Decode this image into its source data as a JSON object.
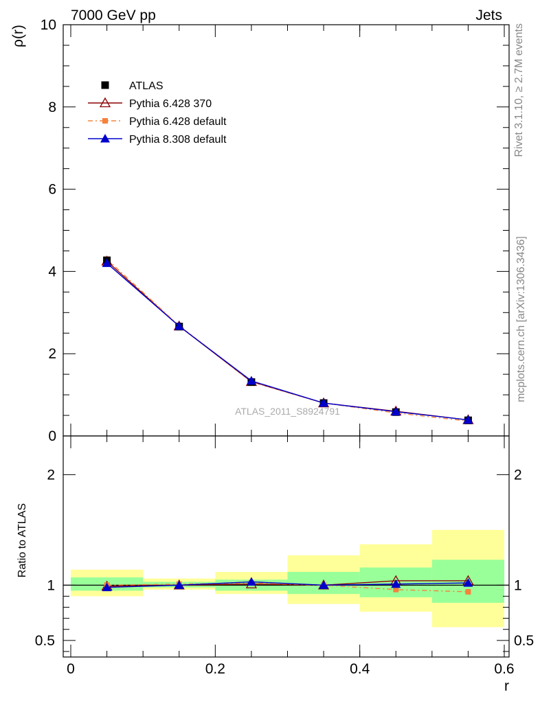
{
  "header": {
    "left": "7000 GeV pp",
    "right": "Jets"
  },
  "side": {
    "rivet": "Rivet 3.1.10, ≥ 2.7M events",
    "mcplots": "mcplots.cern.ch [arXiv:1306.3436]"
  },
  "watermark": "ATLAS_2011_S8924791",
  "colors": {
    "atlas": "#000000",
    "p6_370": "#8b0000",
    "p6_default": "#f5823c",
    "p8_default": "#0000cc",
    "band_inner": "#99ff99",
    "band_outer": "#ffff99"
  },
  "chart_data": [
    {
      "type": "line",
      "name": "main",
      "ylabel": "ρ(r)",
      "xlim": [
        0,
        0.6
      ],
      "ylim": [
        0,
        10
      ],
      "yticks": [
        0,
        2,
        4,
        6,
        8,
        10
      ],
      "ytick_labels": [
        "0",
        "2",
        "4",
        "6",
        "8",
        "10"
      ],
      "x": [
        0.05,
        0.15,
        0.25,
        0.35,
        0.45,
        0.55
      ],
      "legend_position": "top-left",
      "series": [
        {
          "name": "ATLAS",
          "style": "data",
          "values": [
            4.27,
            2.66,
            1.31,
            0.8,
            0.58,
            0.38
          ]
        },
        {
          "name": "Pythia 6.428 370",
          "style": "open-triangle",
          "values": [
            4.25,
            2.67,
            1.32,
            0.8,
            0.6,
            0.39
          ]
        },
        {
          "name": "Pythia 6.428 default",
          "style": "dashdot-square",
          "values": [
            4.3,
            2.68,
            1.33,
            0.8,
            0.56,
            0.36
          ]
        },
        {
          "name": "Pythia 8.308 default",
          "style": "filled-triangle",
          "values": [
            4.2,
            2.67,
            1.34,
            0.8,
            0.59,
            0.39
          ]
        }
      ]
    },
    {
      "type": "line",
      "name": "ratio",
      "xlabel": "r",
      "ylabel": "Ratio to ATLAS",
      "xlim": [
        0,
        0.6
      ],
      "ylim": [
        0.35,
        2.35
      ],
      "xticks": [
        0,
        0.2,
        0.4,
        0.6
      ],
      "xtick_labels": [
        "0",
        "0.2",
        "0.4",
        "0.6"
      ],
      "yticks": [
        0.5,
        1,
        2
      ],
      "ytick_labels": [
        "0.5",
        "1",
        "2"
      ],
      "bins": [
        [
          0,
          0.1
        ],
        [
          0.1,
          0.2
        ],
        [
          0.2,
          0.3
        ],
        [
          0.3,
          0.4
        ],
        [
          0.4,
          0.5
        ],
        [
          0.5,
          0.6
        ]
      ],
      "band_inner": [
        [
          0.95,
          1.07
        ],
        [
          0.98,
          1.03
        ],
        [
          0.95,
          1.05
        ],
        [
          0.92,
          1.12
        ],
        [
          0.89,
          1.16
        ],
        [
          0.84,
          1.23
        ]
      ],
      "band_outer": [
        [
          0.9,
          1.14
        ],
        [
          0.96,
          1.06
        ],
        [
          0.92,
          1.12
        ],
        [
          0.83,
          1.27
        ],
        [
          0.76,
          1.37
        ],
        [
          0.62,
          1.5
        ]
      ],
      "x": [
        0.05,
        0.15,
        0.25,
        0.35,
        0.45,
        0.55
      ],
      "series": [
        {
          "name": "Pythia 6.428 370",
          "style": "open-triangle",
          "values": [
            0.99,
            1.0,
            1.01,
            1.0,
            1.04,
            1.04
          ]
        },
        {
          "name": "Pythia 6.428 default",
          "style": "dashdot-square",
          "values": [
            1.0,
            1.01,
            1.02,
            1.0,
            0.96,
            0.94
          ]
        },
        {
          "name": "Pythia 8.308 default",
          "style": "filled-triangle",
          "values": [
            0.98,
            1.0,
            1.03,
            1.0,
            1.01,
            1.02
          ]
        }
      ]
    }
  ]
}
